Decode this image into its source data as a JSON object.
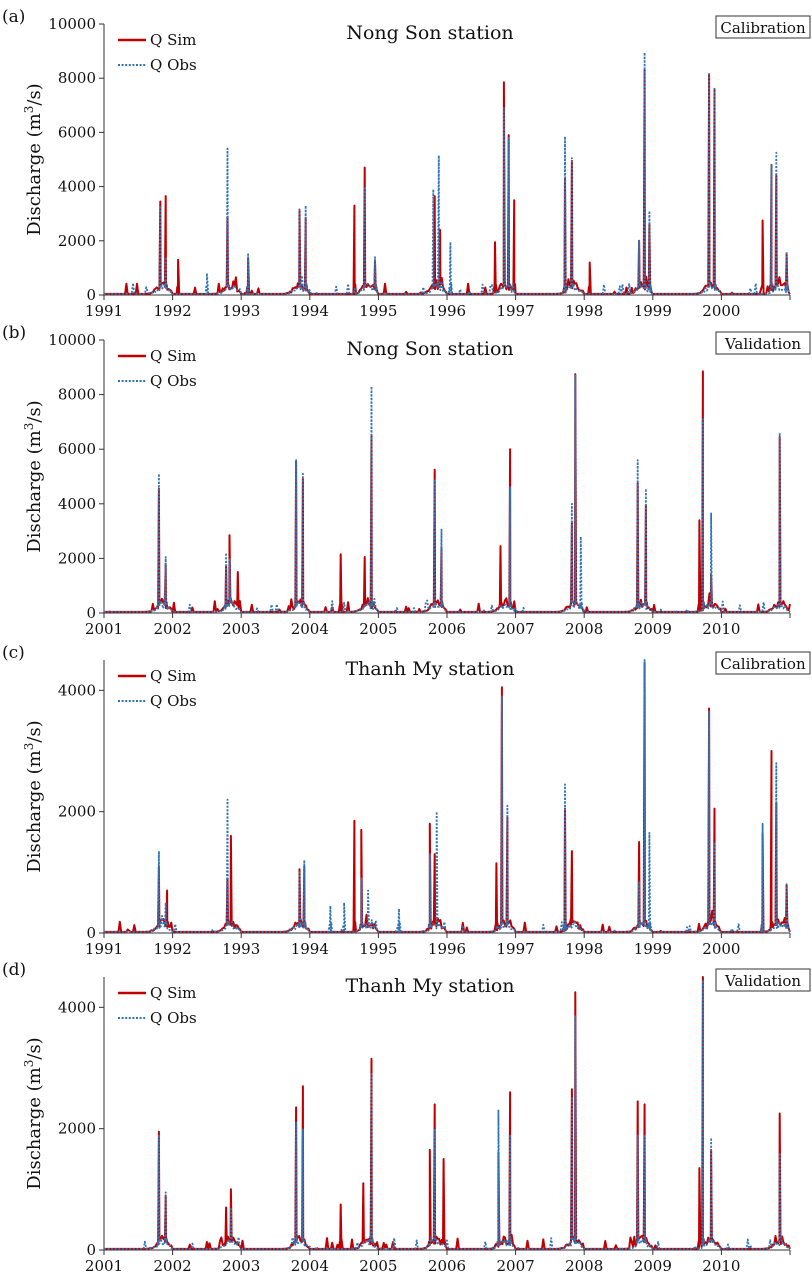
{
  "chart_data": [
    {
      "panel": "(a)",
      "type": "line",
      "title": "Nong Son station",
      "badge": "Calibration",
      "ylabel": "Discharge (m3/s)",
      "ylabel_base": "Discharge (m",
      "ylabel_sup": "3",
      "ylabel_tail": "/s)",
      "ylim": [
        0,
        10000
      ],
      "yticks": [
        0,
        2000,
        4000,
        6000,
        8000,
        10000
      ],
      "xlim": [
        1991,
        2001
      ],
      "xticks": [
        "1991",
        "1992",
        "1993",
        "1994",
        "1995",
        "1996",
        "1997",
        "1998",
        "1999",
        "2000"
      ],
      "legend_position": "top-left",
      "series": [
        {
          "name": "Q Sim",
          "color": "#c00000",
          "style": "solid",
          "peaks": [
            [
              1991.82,
              3450
            ],
            [
              1991.9,
              3650
            ],
            [
              1992.08,
              1300
            ],
            [
              1992.8,
              2850
            ],
            [
              1993.1,
              1350
            ],
            [
              1993.85,
              3150
            ],
            [
              1993.94,
              2850
            ],
            [
              1994.65,
              3300
            ],
            [
              1994.8,
              4700
            ],
            [
              1994.95,
              1250
            ],
            [
              1995.82,
              3650
            ],
            [
              1995.9,
              2400
            ],
            [
              1996.7,
              1950
            ],
            [
              1996.83,
              7850
            ],
            [
              1996.9,
              5900
            ],
            [
              1996.98,
              3500
            ],
            [
              1997.72,
              4300
            ],
            [
              1997.82,
              4950
            ],
            [
              1998.08,
              1200
            ],
            [
              1998.8,
              2000
            ],
            [
              1998.88,
              8300
            ],
            [
              1998.95,
              2600
            ],
            [
              1999.82,
              8150
            ],
            [
              1999.9,
              7600
            ],
            [
              2000.6,
              2750
            ],
            [
              2000.73,
              4800
            ],
            [
              2000.8,
              4400
            ],
            [
              2000.95,
              1500
            ]
          ]
        },
        {
          "name": "Q Obs",
          "color": "#2e75b6",
          "style": "dotted",
          "peaks": [
            [
              1991.82,
              3300
            ],
            [
              1991.9,
              1400
            ],
            [
              1992.5,
              800
            ],
            [
              1992.8,
              5400
            ],
            [
              1993.1,
              1500
            ],
            [
              1993.85,
              3200
            ],
            [
              1993.94,
              3300
            ],
            [
              1994.8,
              4000
            ],
            [
              1994.95,
              1400
            ],
            [
              1995.8,
              3900
            ],
            [
              1995.88,
              5150
            ],
            [
              1996.05,
              1950
            ],
            [
              1996.83,
              6900
            ],
            [
              1996.9,
              5800
            ],
            [
              1997.72,
              5850
            ],
            [
              1997.82,
              5050
            ],
            [
              1998.8,
              2000
            ],
            [
              1998.88,
              8950
            ],
            [
              1998.95,
              3100
            ],
            [
              1999.82,
              8150
            ],
            [
              1999.9,
              7600
            ],
            [
              2000.73,
              4800
            ],
            [
              2000.8,
              5250
            ],
            [
              2000.95,
              1600
            ]
          ]
        }
      ]
    },
    {
      "panel": "(b)",
      "type": "line",
      "title": "Nong Son station",
      "badge": "Validation",
      "ylabel": "Discharge (m3/s)",
      "ylabel_base": "Discharge (m",
      "ylabel_sup": "3",
      "ylabel_tail": "/s)",
      "ylim": [
        0,
        10000
      ],
      "yticks": [
        0,
        2000,
        4000,
        6000,
        8000,
        10000
      ],
      "xlim": [
        2001,
        2011
      ],
      "xticks": [
        "2001",
        "2002",
        "2003",
        "2004",
        "2005",
        "2006",
        "2007",
        "2008",
        "2009",
        "2010"
      ],
      "legend_position": "top-left",
      "series": [
        {
          "name": "Q Sim",
          "color": "#c00000",
          "style": "solid",
          "peaks": [
            [
              2001.8,
              4550
            ],
            [
              2001.9,
              1800
            ],
            [
              2002.78,
              1700
            ],
            [
              2002.83,
              2850
            ],
            [
              2002.95,
              1500
            ],
            [
              2003.8,
              5550
            ],
            [
              2003.9,
              4900
            ],
            [
              2004.45,
              2150
            ],
            [
              2004.8,
              2050
            ],
            [
              2004.9,
              6500
            ],
            [
              2005.82,
              5250
            ],
            [
              2005.92,
              2400
            ],
            [
              2006.78,
              2450
            ],
            [
              2006.92,
              6000
            ],
            [
              2007.82,
              3300
            ],
            [
              2007.87,
              8750
            ],
            [
              2008.78,
              4750
            ],
            [
              2008.9,
              3950
            ],
            [
              2009.68,
              3400
            ],
            [
              2009.73,
              8850
            ],
            [
              2009.85,
              1400
            ],
            [
              2010.85,
              6450
            ]
          ]
        },
        {
          "name": "Q Obs",
          "color": "#2e75b6",
          "style": "dotted",
          "peaks": [
            [
              2001.8,
              5100
            ],
            [
              2001.9,
              2050
            ],
            [
              2002.78,
              2200
            ],
            [
              2002.83,
              2000
            ],
            [
              2003.8,
              5600
            ],
            [
              2003.9,
              5100
            ],
            [
              2004.9,
              8300
            ],
            [
              2005.82,
              4900
            ],
            [
              2005.92,
              3050
            ],
            [
              2006.92,
              4600
            ],
            [
              2007.82,
              4000
            ],
            [
              2007.87,
              8700
            ],
            [
              2007.95,
              2800
            ],
            [
              2008.78,
              5600
            ],
            [
              2008.9,
              4550
            ],
            [
              2009.73,
              7100
            ],
            [
              2009.85,
              3650
            ],
            [
              2010.85,
              6600
            ]
          ]
        }
      ]
    },
    {
      "panel": "(c)",
      "type": "line",
      "title": "Thanh My station",
      "badge": "Calibration",
      "ylabel": "Discharge (m3/s)",
      "ylabel_base": "Discharge (m",
      "ylabel_sup": "3",
      "ylabel_tail": "/s)",
      "ylim": [
        0,
        4500
      ],
      "yticks": [
        0,
        2000,
        4000
      ],
      "xlim": [
        1991,
        2001
      ],
      "xticks": [
        "1991",
        "1992",
        "1993",
        "1994",
        "1995",
        "1996",
        "1997",
        "1998",
        "1999",
        "2000"
      ],
      "legend_position": "top-left",
      "series": [
        {
          "name": "Q Sim",
          "color": "#c00000",
          "style": "solid",
          "peaks": [
            [
              1991.8,
              1100
            ],
            [
              1991.92,
              700
            ],
            [
              1992.8,
              900
            ],
            [
              1992.85,
              1600
            ],
            [
              1993.85,
              1050
            ],
            [
              1993.92,
              1100
            ],
            [
              1994.65,
              1850
            ],
            [
              1994.75,
              1700
            ],
            [
              1995.75,
              1800
            ],
            [
              1995.82,
              1300
            ],
            [
              1996.72,
              1150
            ],
            [
              1996.8,
              4050
            ],
            [
              1996.88,
              1900
            ],
            [
              1997.72,
              2050
            ],
            [
              1997.82,
              1350
            ],
            [
              1998.8,
              1500
            ],
            [
              1998.88,
              4450
            ],
            [
              1999.82,
              3700
            ],
            [
              1999.9,
              2050
            ],
            [
              2000.6,
              1650
            ],
            [
              2000.73,
              3000
            ],
            [
              2000.8,
              2150
            ],
            [
              2000.95,
              800
            ]
          ]
        },
        {
          "name": "Q Obs",
          "color": "#2e75b6",
          "style": "dotted",
          "peaks": [
            [
              1991.8,
              1350
            ],
            [
              1991.9,
              500
            ],
            [
              1992.8,
              2200
            ],
            [
              1993.85,
              1000
            ],
            [
              1993.92,
              1200
            ],
            [
              1994.3,
              450
            ],
            [
              1994.5,
              500
            ],
            [
              1994.75,
              900
            ],
            [
              1994.85,
              700
            ],
            [
              1995.3,
              400
            ],
            [
              1995.75,
              1300
            ],
            [
              1995.85,
              2000
            ],
            [
              1996.8,
              3900
            ],
            [
              1996.88,
              2100
            ],
            [
              1997.72,
              2450
            ],
            [
              1998.8,
              850
            ],
            [
              1998.88,
              4500
            ],
            [
              1998.95,
              1650
            ],
            [
              1999.82,
              3650
            ],
            [
              1999.9,
              1500
            ],
            [
              2000.6,
              1800
            ],
            [
              2000.8,
              2800
            ],
            [
              2000.95,
              800
            ]
          ]
        }
      ]
    },
    {
      "panel": "(d)",
      "type": "line",
      "title": "Thanh My station",
      "badge": "Validation",
      "ylabel": "Discharge (m3/s)",
      "ylabel_base": "Discharge (m",
      "ylabel_sup": "3",
      "ylabel_tail": "/s)",
      "ylim": [
        0,
        4500
      ],
      "yticks": [
        0,
        2000,
        4000
      ],
      "xlim": [
        2001,
        2011
      ],
      "xticks": [
        "2001",
        "2002",
        "2003",
        "2004",
        "2005",
        "2006",
        "2007",
        "2008",
        "2009",
        "2010"
      ],
      "legend_position": "top-left",
      "series": [
        {
          "name": "Q Sim",
          "color": "#c00000",
          "style": "solid",
          "peaks": [
            [
              2001.8,
              1950
            ],
            [
              2001.9,
              900
            ],
            [
              2002.78,
              700
            ],
            [
              2002.85,
              1000
            ],
            [
              2003.8,
              2350
            ],
            [
              2003.9,
              2700
            ],
            [
              2004.45,
              750
            ],
            [
              2004.78,
              1100
            ],
            [
              2004.9,
              3150
            ],
            [
              2005.75,
              1650
            ],
            [
              2005.82,
              2400
            ],
            [
              2005.95,
              1500
            ],
            [
              2006.75,
              1600
            ],
            [
              2006.92,
              2600
            ],
            [
              2007.82,
              2650
            ],
            [
              2007.87,
              4250
            ],
            [
              2008.78,
              2450
            ],
            [
              2008.88,
              2400
            ],
            [
              2009.68,
              1350
            ],
            [
              2009.73,
              4500
            ],
            [
              2009.85,
              1650
            ],
            [
              2010.85,
              2250
            ]
          ]
        },
        {
          "name": "Q Obs",
          "color": "#2e75b6",
          "style": "dotted",
          "peaks": [
            [
              2001.8,
              1900
            ],
            [
              2001.9,
              950
            ],
            [
              2002.85,
              700
            ],
            [
              2003.8,
              2100
            ],
            [
              2003.9,
              2000
            ],
            [
              2004.9,
              2900
            ],
            [
              2005.82,
              2000
            ],
            [
              2006.75,
              2300
            ],
            [
              2006.92,
              1900
            ],
            [
              2007.82,
              2500
            ],
            [
              2007.87,
              3850
            ],
            [
              2008.78,
              1900
            ],
            [
              2008.88,
              1900
            ],
            [
              2009.73,
              4450
            ],
            [
              2009.85,
              1850
            ],
            [
              2010.85,
              1600
            ]
          ]
        }
      ]
    }
  ]
}
